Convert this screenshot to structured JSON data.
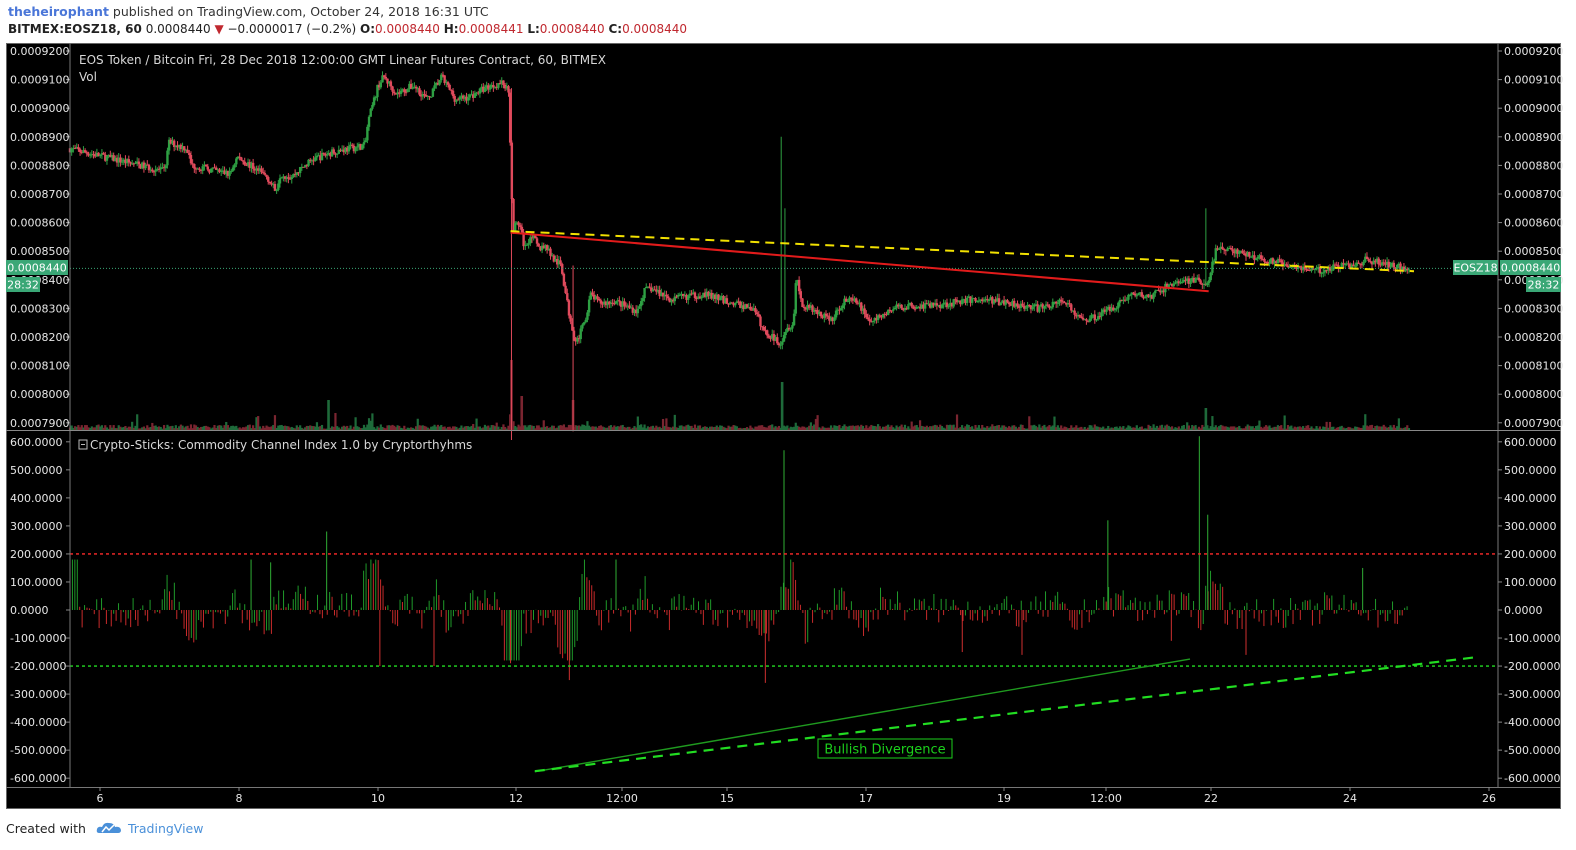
{
  "header": {
    "author": "theheirophant",
    "published": "published on TradingView.com, October 24, 2018 16:31 UTC",
    "symbol": "BITMEX:EOSZ18, 60",
    "last": "0.0008440",
    "change_arrow": "▼",
    "change": "−0.0000017 (−0.2%)",
    "o_label": "O:",
    "o_value": "0.0008440",
    "h_label": "H:",
    "h_value": "0.0008441",
    "l_label": "L:",
    "l_value": "0.0008440",
    "c_label": "C:",
    "c_value": "0.0008440"
  },
  "price_pane": {
    "legend": "EOS Token / Bitcoin Fri, 28 Dec 2018 12:00:00 GMT Linear Futures Contract, 60, BITMEX",
    "vol_label": "Vol",
    "y_ticks": [
      "0.0009200",
      "0.0009100",
      "0.0009000",
      "0.0008900",
      "0.0008800",
      "0.0008700",
      "0.0008600",
      "0.0008500",
      "0.0008400",
      "0.0008300",
      "0.0008200",
      "0.0008100",
      "0.0008000",
      "0.0007900"
    ],
    "last_price_label": "0.0008440",
    "symbol_tag": "EOSZ18",
    "countdown": "28:32"
  },
  "cci_pane": {
    "legend": "Crypto-Sticks: Commodity Channel Index 1.0 by Cryptorthyhms",
    "legend_icon": "eye-off-icon",
    "y_ticks": [
      "600.0000",
      "500.0000",
      "400.0000",
      "300.0000",
      "200.0000",
      "100.0000",
      "0.0000",
      "-100.0000",
      "-200.0000",
      "-300.0000",
      "-400.0000",
      "-500.0000",
      "-600.0000"
    ],
    "annotation": "Bullish Divergence"
  },
  "x_axis": {
    "ticks": [
      "6",
      "8",
      "10",
      "12",
      "12:00",
      "15",
      "17",
      "19",
      "12:00",
      "22",
      "24",
      "26"
    ]
  },
  "footer": {
    "created_with": "Created with",
    "brand": "TradingView",
    "brand_icon": "tradingview-cloud-icon"
  },
  "colors": {
    "up": "#2ea043",
    "down": "#e04a5c",
    "background": "#000000",
    "trend_red": "#e21b1b",
    "trend_yellow": "#f2e100",
    "cci_upper": "#ff2a2a",
    "cci_lower": "#22dd22",
    "divergence": "#1f9a1f",
    "price_tag": "#3aa776"
  },
  "chart_data": [
    {
      "type": "candlestick",
      "title": "EOS Token / Bitcoin Fri, 28 Dec 2018 12:00:00 GMT Linear Futures Contract, 60, BITMEX",
      "ylim": [
        0.00079,
        0.00092
      ],
      "last_price": 0.000844,
      "segments": [
        {
          "x": [
            0.0,
            10.3,
            10.8,
            12.7,
            13.2,
            17.3,
            18.1,
            21.3,
            22.2,
            22.7,
            23.9,
            26.1,
            28.6,
            31.8,
            32.1,
            33.2,
            33.8
          ],
          "y": [
            0.000886,
            0.000878,
            0.000888,
            0.000886,
            0.00088,
            0.000877,
            0.000883,
            0.000876,
            0.000871,
            0.000877,
            0.000876,
            0.000882,
            0.000885,
            0.000887,
            0.000895,
            0.000908,
            0.000911
          ]
        },
        {
          "x": [
            33.8,
            35.2,
            37.0,
            38.5,
            40.0,
            41.5,
            43.0,
            44.6,
            46.5,
            47.2
          ],
          "y": [
            0.000911,
            0.000905,
            0.000908,
            0.000903,
            0.000911,
            0.000903,
            0.000904,
            0.000907,
            0.000909,
            0.000906
          ]
        },
        {
          "x": [
            47.2,
            47.6,
            48.3,
            48.9,
            49.6,
            50.4,
            51.2,
            52.0,
            52.8,
            53.6,
            54.4,
            55.2,
            56.0,
            56.8,
            57.6,
            58.2
          ],
          "y": [
            0.000906,
            0.000858,
            0.00086,
            0.000851,
            0.000856,
            0.000851,
            0.000852,
            0.000847,
            0.000845,
            0.000829,
            0.000818,
            0.000824,
            0.000835,
            0.000832,
            0.000832,
            0.000832
          ]
        },
        {
          "x": [
            58.2,
            61.0,
            61.7,
            62.4,
            64.7,
            65.8,
            68.2,
            71.0,
            73.3,
            74.0,
            74.5,
            76.3,
            76.9,
            77.7,
            78.0
          ],
          "y": [
            0.000833,
            0.000829,
            0.000836,
            0.000837,
            0.000833,
            0.000834,
            0.000835,
            0.000832,
            0.00083,
            0.000826,
            0.000822,
            0.000818,
            0.000823,
            0.000825,
            0.000842
          ]
        },
        {
          "x": [
            78.0,
            78.7,
            79.4,
            81.9,
            83.1,
            84.6,
            86.0,
            88.4,
            90.2,
            92.0,
            95.0,
            96.0,
            98.0,
            101.0,
            104.0,
            106.8
          ],
          "y": [
            0.000842,
            0.00083,
            0.00083,
            0.000826,
            0.000833,
            0.000832,
            0.000825,
            0.00083,
            0.000831,
            0.000831,
            0.000832,
            0.000833,
            0.000833,
            0.000832,
            0.00083,
            0.000833
          ]
        },
        {
          "x": [
            106.8,
            108.5,
            110.0,
            112.2,
            113.9,
            115.9,
            118.4,
            121.0,
            122.0
          ],
          "y": [
            0.000832,
            0.000826,
            0.000827,
            0.000831,
            0.000835,
            0.000834,
            0.000839,
            0.00084,
            0.000837
          ]
        },
        {
          "x": [
            122.0,
            122.9,
            124.0,
            126.0,
            128.0,
            130.0,
            131.5,
            132.5,
            133.7,
            135.2,
            136.0,
            137.5,
            139.0,
            140.4,
            141.9,
            143.5
          ],
          "y": [
            0.000837,
            0.00085,
            0.000851,
            0.000849,
            0.000847,
            0.000846,
            0.000845,
            0.000844,
            0.000843,
            0.000844,
            0.000845,
            0.000845,
            0.000847,
            0.000846,
            0.000845,
            0.000844
          ]
        }
      ],
      "trendlines": [
        {
          "style": "solid",
          "color": "red",
          "from": [
            47.2,
            0.0008565
          ],
          "to": [
            122.0,
            0.000836
          ]
        },
        {
          "style": "dashed",
          "color": "yellow",
          "from": [
            47.2,
            0.000857
          ],
          "to": [
            144.0,
            0.000843
          ]
        }
      ],
      "x_unit": "approx. half-day steps from Oct 5"
    },
    {
      "type": "histogram",
      "title": "Crypto-Sticks: Commodity Channel Index 1.0 by Cryptorthyhms",
      "ylim": [
        -620,
        620
      ],
      "levels": [
        {
          "value": 200,
          "color": "red",
          "style": "dashed"
        },
        {
          "value": -200,
          "color": "green",
          "style": "dashed"
        }
      ],
      "spikes": [
        {
          "x": 19.4,
          "value": 180
        },
        {
          "x": 21.5,
          "value": 170
        },
        {
          "x": 27.5,
          "value": 280
        },
        {
          "x": 33.2,
          "value": -200
        },
        {
          "x": 39.0,
          "value": -200
        },
        {
          "x": 47.2,
          "value": -190
        },
        {
          "x": 53.5,
          "value": -250
        },
        {
          "x": 58.5,
          "value": 180
        },
        {
          "x": 74.5,
          "value": -260
        },
        {
          "x": 76.5,
          "value": 570
        },
        {
          "x": 95.6,
          "value": -150
        },
        {
          "x": 102.0,
          "value": -160
        },
        {
          "x": 111.2,
          "value": 320
        },
        {
          "x": 118.0,
          "value": -110
        },
        {
          "x": 121.0,
          "value": 620
        },
        {
          "x": 121.9,
          "value": 340
        },
        {
          "x": 126.0,
          "value": -160
        },
        {
          "x": 138.5,
          "value": 150
        }
      ],
      "trendlines": [
        {
          "style": "solid",
          "color": "green",
          "from": [
            49.8,
            -577
          ],
          "to": [
            120.0,
            -175
          ]
        },
        {
          "style": "dashed",
          "color": "green",
          "from": [
            49.8,
            -575
          ],
          "to": [
            151.0,
            -167
          ]
        }
      ],
      "annotation": "Bullish Divergence"
    }
  ]
}
